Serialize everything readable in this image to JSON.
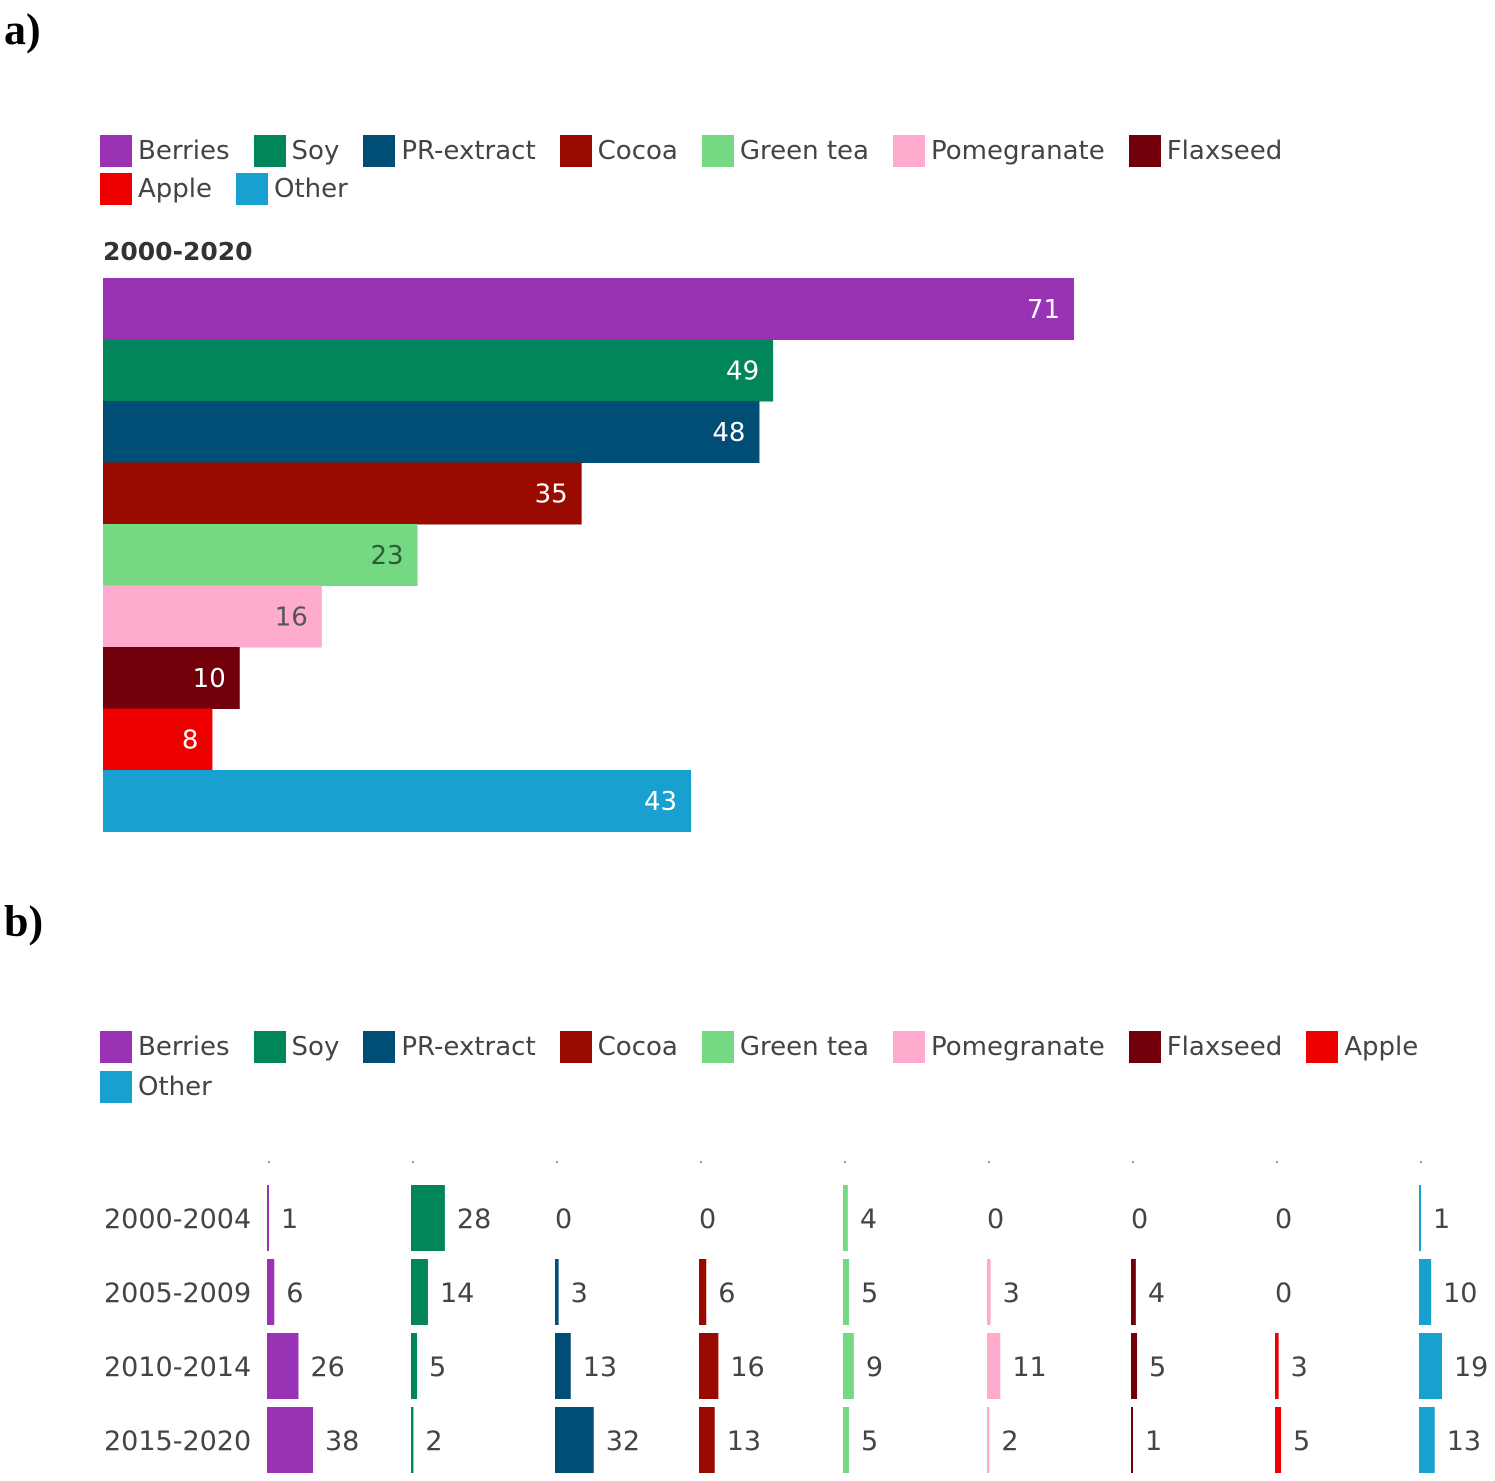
{
  "panel_a": {
    "label": "a)",
    "legend": [
      {
        "name": "Berries",
        "color": "#9932b4"
      },
      {
        "name": "Soy",
        "color": "#00865a"
      },
      {
        "name": "PR-extract",
        "color": "#004d75"
      },
      {
        "name": "Cocoa",
        "color": "#990b00"
      },
      {
        "name": "Green tea",
        "color": "#74d982"
      },
      {
        "name": "Pomegranate",
        "color": "#ffabcd"
      },
      {
        "name": "Flaxseed",
        "color": "#72000b"
      },
      {
        "name": "Apple",
        "color": "#ef0000"
      },
      {
        "name": "Other",
        "color": "#18a0d0"
      }
    ]
  },
  "panel_b": {
    "label": "b)",
    "legend": [
      {
        "name": "Berries",
        "color": "#9932b4"
      },
      {
        "name": "Soy",
        "color": "#00865a"
      },
      {
        "name": "PR-extract",
        "color": "#004d75"
      },
      {
        "name": "Cocoa",
        "color": "#990b00"
      },
      {
        "name": "Green tea",
        "color": "#74d982"
      },
      {
        "name": "Pomegranate",
        "color": "#ffabcd"
      },
      {
        "name": "Flaxseed",
        "color": "#72000b"
      },
      {
        "name": "Apple",
        "color": "#ef0000"
      },
      {
        "name": "Other",
        "color": "#18a0d0"
      }
    ]
  },
  "chart_data": [
    {
      "type": "bar",
      "orientation": "horizontal",
      "title": "2000-2020",
      "categories": [
        "Berries",
        "Soy",
        "PR-extract",
        "Cocoa",
        "Green tea",
        "Pomegranate",
        "Flaxseed",
        "Apple",
        "Other"
      ],
      "values": [
        71,
        49,
        48,
        35,
        23,
        16,
        10,
        8,
        43
      ],
      "colors": [
        "#9932b4",
        "#00865a",
        "#004d75",
        "#990b00",
        "#74d982",
        "#ffabcd",
        "#72000b",
        "#ef0000",
        "#18a0d0"
      ],
      "data_labels": true,
      "xlim": [
        0,
        71
      ],
      "grid": false,
      "legend_position": "top"
    },
    {
      "type": "bar",
      "orientation": "horizontal",
      "layout": "small multiples",
      "categories": [
        "2000-2004",
        "2005-2009",
        "2010-2014",
        "2015-2020"
      ],
      "series": [
        {
          "name": "Berries",
          "color": "#9932b4",
          "values": [
            1,
            6,
            26,
            38
          ]
        },
        {
          "name": "Soy",
          "color": "#00865a",
          "values": [
            28,
            14,
            5,
            2
          ]
        },
        {
          "name": "PR-extract",
          "color": "#004d75",
          "values": [
            0,
            3,
            13,
            32
          ]
        },
        {
          "name": "Cocoa",
          "color": "#990b00",
          "values": [
            0,
            6,
            16,
            13
          ]
        },
        {
          "name": "Green tea",
          "color": "#74d982",
          "values": [
            4,
            5,
            9,
            5
          ]
        },
        {
          "name": "Pomegranate",
          "color": "#ffabcd",
          "values": [
            0,
            3,
            11,
            2
          ]
        },
        {
          "name": "Flaxseed",
          "color": "#72000b",
          "values": [
            0,
            4,
            5,
            1
          ]
        },
        {
          "name": "Apple",
          "color": "#ef0000",
          "values": [
            0,
            0,
            3,
            5
          ]
        },
        {
          "name": "Other",
          "color": "#18a0d0",
          "values": [
            1,
            10,
            19,
            13
          ]
        }
      ],
      "header_marks": [
        ".",
        ".",
        ".",
        ".",
        ".",
        ".",
        ".",
        ".",
        "."
      ],
      "data_labels": true,
      "xlim": [
        0,
        38
      ],
      "grid": false,
      "legend_position": "top"
    }
  ]
}
